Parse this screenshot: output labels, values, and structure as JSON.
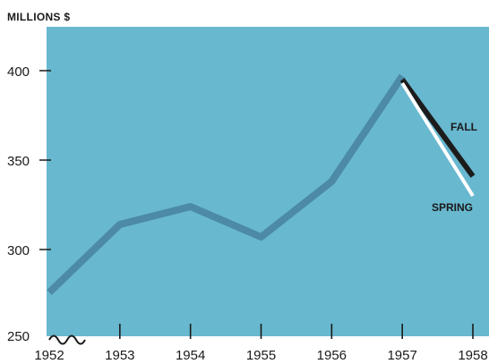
{
  "chart_data": {
    "type": "line",
    "ylabel": "MILLIONS $",
    "x_ticks": [
      "1952",
      "1953",
      "1954",
      "1955",
      "1956",
      "1957",
      "1958"
    ],
    "y_ticks": [
      "250",
      "300",
      "350",
      "400"
    ],
    "ylim": [
      250,
      400
    ],
    "axis_break": true,
    "grid": false,
    "series": [
      {
        "name": "",
        "x": [
          1952,
          1953,
          1954,
          1955,
          1956,
          1957
        ],
        "values": [
          276,
          314,
          324,
          307,
          338,
          397
        ],
        "color": "#4c8aa6"
      },
      {
        "name": "FALL",
        "x": [
          1957,
          1958
        ],
        "values": [
          395,
          341
        ],
        "color": "#1c1c1c"
      },
      {
        "name": "SPRING",
        "x": [
          1957,
          1958
        ],
        "values": [
          393,
          330
        ],
        "color": "#ffffff"
      }
    ],
    "annotations": [
      "FALL",
      "SPRING"
    ],
    "background_color": "#68b8cf"
  }
}
